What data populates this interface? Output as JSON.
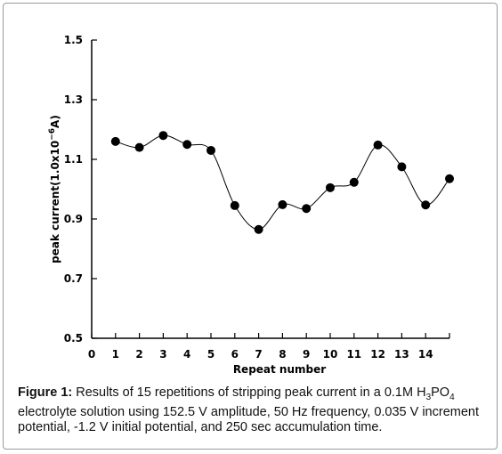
{
  "chart_data": {
    "type": "line",
    "xlabel": "Repeat number",
    "ylabel_main": "peak current(1.0x10",
    "ylabel_sup": "−6",
    "ylabel_tail": "A)",
    "xlim": [
      0,
      15
    ],
    "ylim": [
      0.5,
      1.5
    ],
    "x_ticks": [
      0,
      1,
      2,
      3,
      4,
      5,
      6,
      7,
      8,
      9,
      10,
      11,
      12,
      13,
      14
    ],
    "y_ticks": [
      "0.5",
      "0.7",
      "0.9",
      "1.1",
      "1.3",
      "1.5"
    ],
    "x": [
      1,
      2,
      3,
      4,
      5,
      6,
      7,
      8,
      9,
      10,
      11,
      12,
      13,
      14,
      15
    ],
    "values": [
      1.16,
      1.14,
      1.18,
      1.15,
      1.13,
      0.945,
      0.865,
      0.948,
      0.935,
      1.005,
      1.023,
      1.148,
      1.075,
      0.947,
      1.035
    ]
  },
  "caption": {
    "label": "Figure 1:",
    "text_a": " Results of 15 repetitions of  stripping peak current in a 0.1M H",
    "sub_3": "3",
    "text_b": "PO",
    "sub_4": "4",
    "text_c": " electrolyte solution using 152.5 V amplitude, 50 Hz frequency, 0.035 V increment potential, -1.2 V initial potential, and 250 sec accumulation time."
  }
}
